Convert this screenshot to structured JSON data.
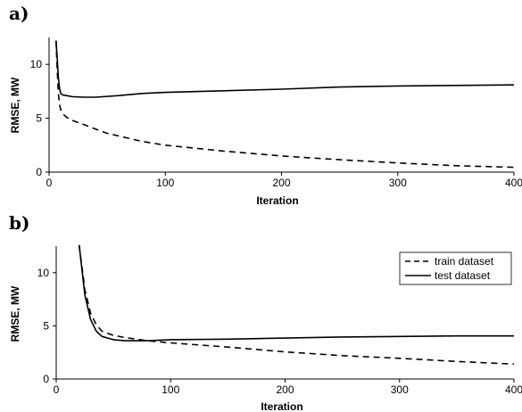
{
  "chart_data": [
    {
      "type": "line",
      "panel_label": "a)",
      "xlabel": "Iteration",
      "ylabel": "RMSE, MW",
      "xlim": [
        0,
        400
      ],
      "ylim": [
        0,
        12.5
      ],
      "xticks": [
        0,
        100,
        200,
        300,
        400
      ],
      "yticks": [
        0,
        5,
        10
      ],
      "grid": false,
      "legend": null,
      "series": [
        {
          "style": "dashed",
          "x": [
            6,
            7,
            8,
            9,
            10,
            12,
            15,
            20,
            30,
            40,
            50,
            60,
            80,
            100,
            150,
            200,
            250,
            300,
            350,
            400
          ],
          "y": [
            12.2,
            9.5,
            7.3,
            6.3,
            5.8,
            5.4,
            5.1,
            4.8,
            4.4,
            4.0,
            3.6,
            3.35,
            2.85,
            2.5,
            1.95,
            1.5,
            1.15,
            0.85,
            0.6,
            0.45
          ]
        },
        {
          "style": "solid",
          "x": [
            6,
            7,
            8,
            9,
            10,
            12,
            15,
            20,
            30,
            40,
            60,
            80,
            100,
            150,
            200,
            250,
            300,
            350,
            400
          ],
          "y": [
            12.2,
            10.6,
            8.8,
            7.8,
            7.3,
            7.15,
            7.1,
            7.0,
            6.95,
            6.95,
            7.1,
            7.3,
            7.4,
            7.55,
            7.7,
            7.9,
            8.0,
            8.05,
            8.1
          ]
        }
      ]
    },
    {
      "type": "line",
      "panel_label": "b)",
      "xlabel": "Iteration",
      "ylabel": "RMSE, MW",
      "xlim": [
        0,
        400
      ],
      "ylim": [
        0,
        12.5
      ],
      "xticks": [
        0,
        100,
        200,
        300,
        400
      ],
      "yticks": [
        0,
        5,
        10
      ],
      "grid": false,
      "legend": "top-right",
      "series": [
        {
          "name": "train dataset",
          "style": "dashed",
          "x": [
            20,
            25,
            30,
            35,
            40,
            50,
            60,
            80,
            100,
            150,
            200,
            250,
            300,
            350,
            400
          ],
          "y": [
            12.6,
            8.4,
            6.2,
            5.1,
            4.5,
            4.1,
            3.9,
            3.6,
            3.4,
            3.0,
            2.55,
            2.2,
            1.95,
            1.65,
            1.4
          ]
        },
        {
          "name": "test dataset",
          "style": "solid",
          "x": [
            20,
            25,
            30,
            35,
            40,
            50,
            60,
            80,
            100,
            150,
            200,
            250,
            300,
            350,
            400
          ],
          "y": [
            12.6,
            7.9,
            5.6,
            4.5,
            4.0,
            3.7,
            3.6,
            3.6,
            3.7,
            3.75,
            3.85,
            3.95,
            4.0,
            4.05,
            4.05
          ]
        }
      ]
    }
  ]
}
